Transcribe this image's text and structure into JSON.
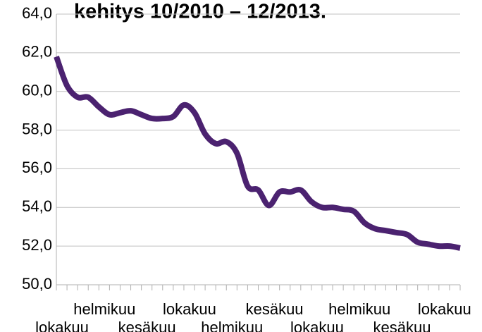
{
  "chart_data": {
    "type": "line",
    "title": "kehitys 10/2010 – 12/2013.",
    "categories": [
      "lokakuu",
      null,
      null,
      null,
      "helmikuu",
      null,
      null,
      null,
      "kesäkuu",
      null,
      null,
      null,
      "lokakuu",
      null,
      null,
      null,
      "helmikuu",
      null,
      null,
      null,
      "kesäkuu",
      null,
      null,
      null,
      "lokakuu",
      null,
      null,
      null,
      "helmikuu",
      null,
      null,
      null,
      "kesäkuu",
      null,
      null,
      null,
      "lokakuu",
      null,
      null
    ],
    "series": [
      {
        "color": "#4b2270",
        "values": [
          61.8,
          60.3,
          59.7,
          59.7,
          59.2,
          58.8,
          58.9,
          59.0,
          58.8,
          58.6,
          58.6,
          58.7,
          59.3,
          58.9,
          57.8,
          57.3,
          57.4,
          56.8,
          55.1,
          54.9,
          54.1,
          54.8,
          54.8,
          54.9,
          54.3,
          54.0,
          54.0,
          53.9,
          53.8,
          53.2,
          52.9,
          52.8,
          52.7,
          52.6,
          52.2,
          52.1,
          52.0,
          52.0,
          51.9
        ]
      }
    ],
    "ylim": [
      50,
      64
    ],
    "yticks": [
      {
        "value": 50,
        "label": "50,0"
      },
      {
        "value": 52,
        "label": "52,0"
      },
      {
        "value": 54,
        "label": "54,0"
      },
      {
        "value": 56,
        "label": "56,0"
      },
      {
        "value": 58,
        "label": "58,0"
      },
      {
        "value": 60,
        "label": "60,0"
      },
      {
        "value": 62,
        "label": "62,0"
      },
      {
        "value": 64,
        "label": "64,0"
      }
    ],
    "grid": true
  }
}
